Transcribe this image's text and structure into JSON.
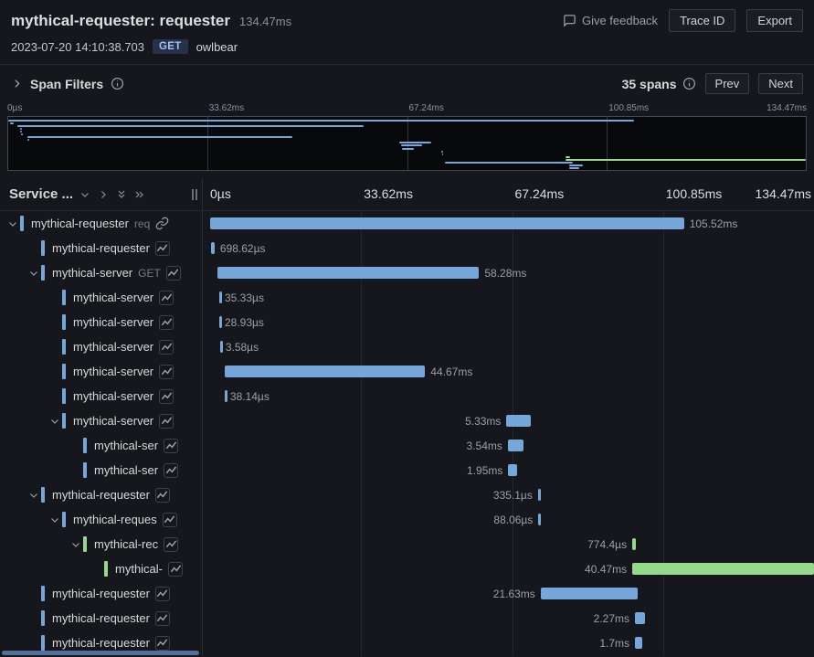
{
  "header": {
    "title": "mythical-requester: requester",
    "duration": "134.47ms",
    "timestamp": "2023-07-20 14:10:38.703",
    "method": "GET",
    "operation": "owlbear",
    "give_feedback_label": "Give feedback",
    "trace_id_label": "Trace ID",
    "export_label": "Export"
  },
  "toolbar": {
    "span_filters_label": "Span Filters",
    "span_count_label": "35 spans",
    "prev_label": "Prev",
    "next_label": "Next"
  },
  "timeline": {
    "total_ms": 134.47,
    "ticks": [
      "0µs",
      "33.62ms",
      "67.24ms",
      "100.85ms",
      "134.47ms"
    ]
  },
  "table": {
    "service_column_label": "Service ..."
  },
  "colors": {
    "blue": "#75a7da",
    "green": "#95d98c",
    "scrollbar": "#527099"
  },
  "spans": [
    {
      "name": "mythical-requester",
      "suffix": "req",
      "depth": 0,
      "expandable": true,
      "color": "blue",
      "icon": "link",
      "start_ms": 0,
      "duration_ms": 105.52,
      "duration_label": "105.52ms",
      "label_side": "right"
    },
    {
      "name": "mythical-requester",
      "suffix": "",
      "depth": 1,
      "expandable": false,
      "color": "blue",
      "icon": "chart",
      "start_ms": 0.3,
      "duration_ms": 0.69862,
      "duration_label": "698.62µs",
      "label_side": "right"
    },
    {
      "name": "mythical-server",
      "suffix": "GET",
      "depth": 1,
      "expandable": true,
      "color": "blue",
      "icon": "chart",
      "start_ms": 1.6,
      "duration_ms": 58.28,
      "duration_label": "58.28ms",
      "label_side": "right"
    },
    {
      "name": "mythical-server",
      "suffix": "",
      "depth": 2,
      "expandable": false,
      "color": "blue",
      "icon": "chart",
      "start_ms": 2.0,
      "duration_ms": 0.03533,
      "duration_label": "35.33µs",
      "label_side": "right"
    },
    {
      "name": "mythical-server",
      "suffix": "",
      "depth": 2,
      "expandable": false,
      "color": "blue",
      "icon": "chart",
      "start_ms": 2.0,
      "duration_ms": 0.02893,
      "duration_label": "28.93µs",
      "label_side": "right"
    },
    {
      "name": "mythical-server",
      "suffix": "",
      "depth": 2,
      "expandable": false,
      "color": "blue",
      "icon": "chart",
      "start_ms": 2.2,
      "duration_ms": 0.00358,
      "duration_label": "3.58µs",
      "label_side": "right"
    },
    {
      "name": "mythical-server",
      "suffix": "",
      "depth": 2,
      "expandable": false,
      "color": "blue",
      "icon": "chart",
      "start_ms": 3.2,
      "duration_ms": 44.67,
      "duration_label": "44.67ms",
      "label_side": "right"
    },
    {
      "name": "mythical-server",
      "suffix": "",
      "depth": 2,
      "expandable": false,
      "color": "blue",
      "icon": "chart",
      "start_ms": 3.2,
      "duration_ms": 0.03814,
      "duration_label": "38.14µs",
      "label_side": "right"
    },
    {
      "name": "mythical-server",
      "suffix": "",
      "depth": 2,
      "expandable": true,
      "color": "blue",
      "icon": "chart",
      "start_ms": 66.0,
      "duration_ms": 5.33,
      "duration_label": "5.33ms",
      "label_side": "left"
    },
    {
      "name": "mythical-ser",
      "suffix": "",
      "depth": 3,
      "expandable": false,
      "color": "blue",
      "icon": "chart",
      "start_ms": 66.3,
      "duration_ms": 3.54,
      "duration_label": "3.54ms",
      "label_side": "left"
    },
    {
      "name": "mythical-ser",
      "suffix": "",
      "depth": 3,
      "expandable": false,
      "color": "blue",
      "icon": "chart",
      "start_ms": 66.4,
      "duration_ms": 1.95,
      "duration_label": "1.95ms",
      "label_side": "left"
    },
    {
      "name": "mythical-requester",
      "suffix": "",
      "depth": 1,
      "expandable": true,
      "color": "blue",
      "icon": "chart",
      "start_ms": 73.0,
      "duration_ms": 0.3351,
      "duration_label": "335.1µs",
      "label_side": "left"
    },
    {
      "name": "mythical-reques",
      "suffix": "",
      "depth": 2,
      "expandable": true,
      "color": "blue",
      "icon": "chart",
      "start_ms": 73.1,
      "duration_ms": 0.08806,
      "duration_label": "88.06µs",
      "label_side": "left"
    },
    {
      "name": "mythical-rec",
      "suffix": "",
      "depth": 3,
      "expandable": true,
      "color": "green",
      "icon": "chart",
      "start_ms": 94.0,
      "duration_ms": 0.7744,
      "duration_label": "774.4µs",
      "label_side": "left"
    },
    {
      "name": "mythical-",
      "suffix": "",
      "depth": 4,
      "expandable": false,
      "color": "green",
      "icon": "chart",
      "start_ms": 94.0,
      "duration_ms": 40.47,
      "duration_label": "40.47ms",
      "label_side": "left"
    },
    {
      "name": "mythical-requester",
      "suffix": "",
      "depth": 1,
      "expandable": false,
      "color": "blue",
      "icon": "chart",
      "start_ms": 73.6,
      "duration_ms": 21.63,
      "duration_label": "21.63ms",
      "label_side": "left"
    },
    {
      "name": "mythical-requester",
      "suffix": "",
      "depth": 1,
      "expandable": false,
      "color": "blue",
      "icon": "chart",
      "start_ms": 94.6,
      "duration_ms": 2.27,
      "duration_label": "2.27ms",
      "label_side": "left"
    },
    {
      "name": "mythical-requester",
      "suffix": "",
      "depth": 1,
      "expandable": false,
      "color": "blue",
      "icon": "chart",
      "start_ms": 94.6,
      "duration_ms": 1.7,
      "duration_label": "1.7ms",
      "label_side": "left"
    }
  ]
}
